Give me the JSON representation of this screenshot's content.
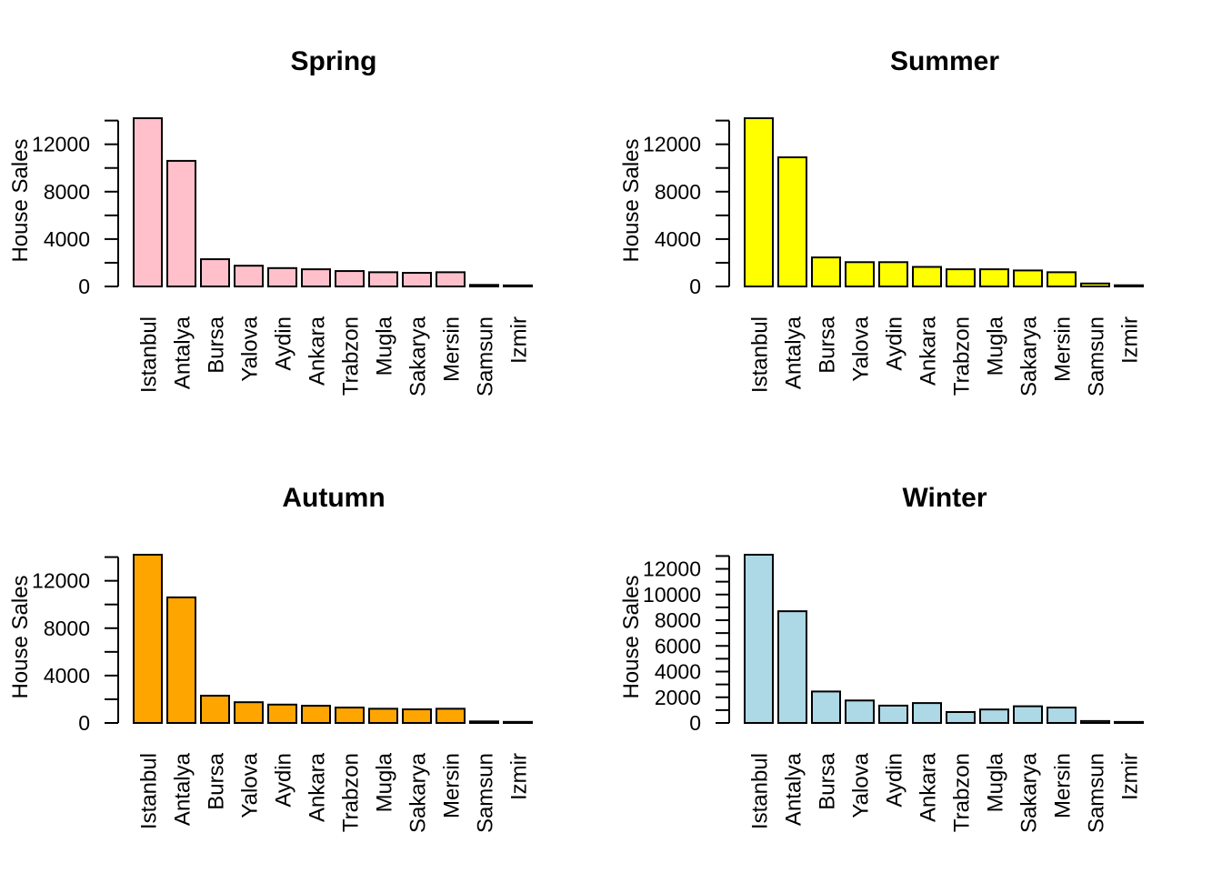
{
  "chart_data": [
    {
      "type": "bar",
      "title": "Spring",
      "ylabel": "House Sales",
      "color": "#ffc0cb",
      "categories": [
        "Istanbul",
        "Antalya",
        "Bursa",
        "Yalova",
        "Aydin",
        "Ankara",
        "Trabzon",
        "Mugla",
        "Sakarya",
        "Mersin",
        "Samsun",
        "Izmir"
      ],
      "values": [
        14200,
        10600,
        2300,
        1750,
        1550,
        1450,
        1300,
        1200,
        1150,
        1200,
        130,
        90
      ],
      "yticks": [
        0,
        4000,
        8000,
        12000
      ],
      "ylim": [
        0,
        14200
      ]
    },
    {
      "type": "bar",
      "title": "Summer",
      "ylabel": "House Sales",
      "color": "#ffff00",
      "categories": [
        "Istanbul",
        "Antalya",
        "Bursa",
        "Yalova",
        "Aydin",
        "Ankara",
        "Trabzon",
        "Mugla",
        "Sakarya",
        "Mersin",
        "Samsun",
        "Izmir"
      ],
      "values": [
        14200,
        10900,
        2450,
        2050,
        2050,
        1650,
        1450,
        1450,
        1350,
        1200,
        250,
        100
      ],
      "yticks": [
        0,
        4000,
        8000,
        12000
      ],
      "ylim": [
        0,
        14200
      ]
    },
    {
      "type": "bar",
      "title": "Autumn",
      "ylabel": "House Sales",
      "color": "#ffa500",
      "categories": [
        "Istanbul",
        "Antalya",
        "Bursa",
        "Yalova",
        "Aydin",
        "Ankara",
        "Trabzon",
        "Mugla",
        "Sakarya",
        "Mersin",
        "Samsun",
        "Izmir"
      ],
      "values": [
        14200,
        10600,
        2300,
        1750,
        1550,
        1450,
        1300,
        1200,
        1150,
        1200,
        130,
        90
      ],
      "yticks": [
        0,
        4000,
        8000,
        12000
      ],
      "ylim": [
        0,
        14200
      ]
    },
    {
      "type": "bar",
      "title": "Winter",
      "ylabel": "House Sales",
      "color": "#add8e6",
      "categories": [
        "Istanbul",
        "Antalya",
        "Bursa",
        "Yalova",
        "Aydin",
        "Ankara",
        "Trabzon",
        "Mugla",
        "Sakarya",
        "Mersin",
        "Samsun",
        "Izmir"
      ],
      "values": [
        13100,
        8700,
        2450,
        1750,
        1350,
        1550,
        850,
        1050,
        1300,
        1200,
        150,
        80
      ],
      "yticks": [
        0,
        2000,
        4000,
        6000,
        8000,
        10000,
        12000
      ],
      "ylim": [
        0,
        13100
      ]
    }
  ]
}
